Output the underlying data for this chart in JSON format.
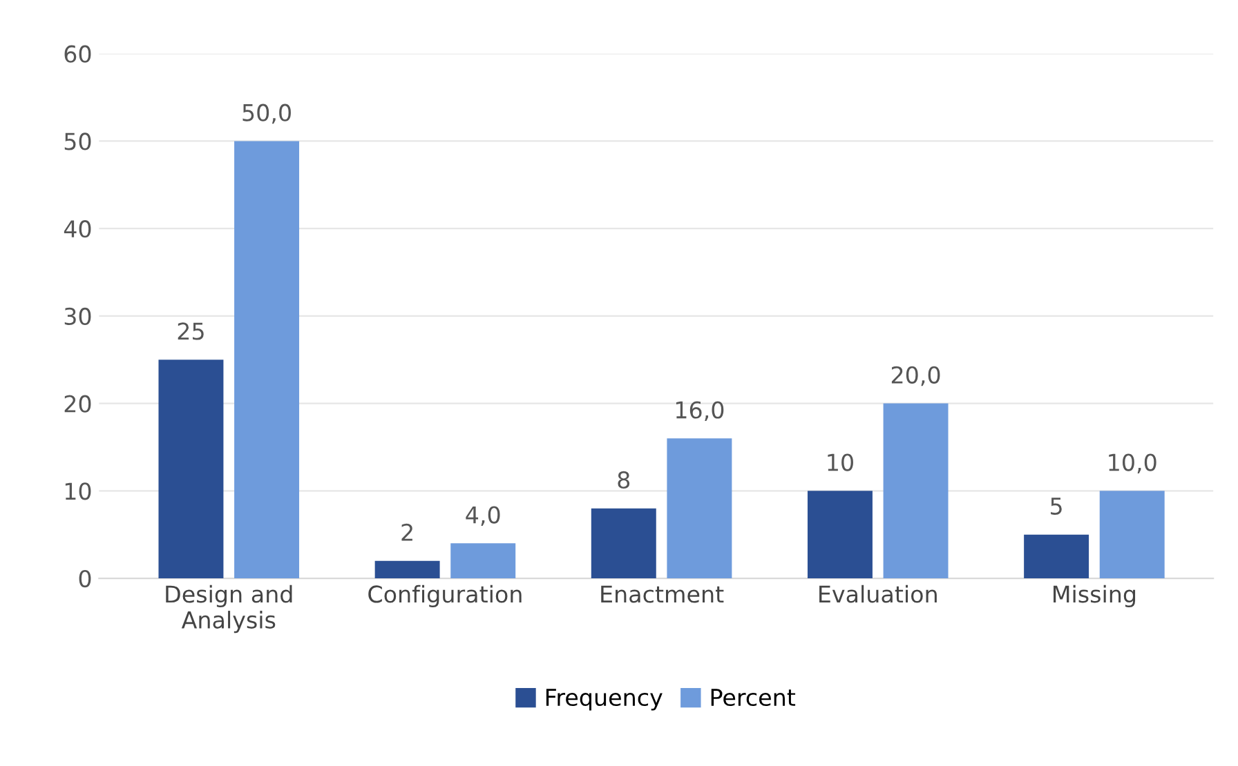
{
  "chart_data": {
    "type": "bar",
    "categories": [
      "Design and\nAnalysis",
      "Configuration",
      "Enactment",
      "Evaluation",
      "Missing"
    ],
    "series": [
      {
        "name": "Frequency",
        "color": "#2b4f93",
        "values": [
          25,
          2,
          8,
          10,
          5
        ],
        "value_labels": [
          "25",
          "2",
          "8",
          "10",
          "5"
        ]
      },
      {
        "name": "Percent",
        "color": "#6e9bdc",
        "values": [
          50,
          4,
          16,
          20,
          10
        ],
        "value_labels": [
          "50,0",
          "4,0",
          "16,0",
          "20,0",
          "10,0"
        ]
      }
    ],
    "ylim": [
      0,
      60
    ],
    "yticks": [
      0,
      10,
      20,
      30,
      40,
      50,
      60
    ],
    "grid": "y",
    "legend": "bottom"
  }
}
